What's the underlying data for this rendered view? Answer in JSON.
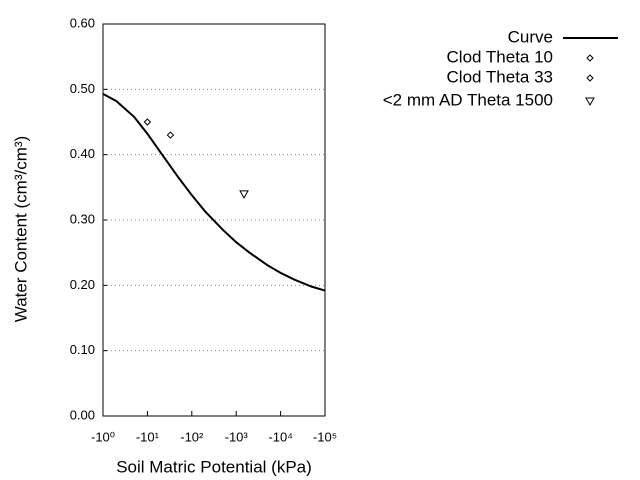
{
  "chart_data": {
    "type": "line",
    "xlabel": "Soil Matric Potential (kPa)",
    "ylabel": "Water Content (cm³/cm³)",
    "xscale": "log",
    "xlim": [
      -1,
      -100000
    ],
    "ylim": [
      0,
      0.6
    ],
    "xticks": [
      {
        "value": -1,
        "label": "-10⁰"
      },
      {
        "value": -10,
        "label": "-10¹"
      },
      {
        "value": -100,
        "label": "-10²"
      },
      {
        "value": -1000,
        "label": "-10³"
      },
      {
        "value": -10000,
        "label": "-10⁴"
      },
      {
        "value": -100000,
        "label": "-10⁵"
      }
    ],
    "yticks": [
      {
        "value": 0,
        "label": "0.00"
      },
      {
        "value": 0.1,
        "label": "0.10"
      },
      {
        "value": 0.2,
        "label": "0.20"
      },
      {
        "value": 0.3,
        "label": "0.30"
      },
      {
        "value": 0.4,
        "label": "0.40"
      },
      {
        "value": 0.5,
        "label": "0.50"
      },
      {
        "value": 0.6,
        "label": "0.60"
      }
    ],
    "grid": true,
    "legend": "upper right",
    "series": [
      {
        "name": "Curve",
        "color": "#000000",
        "marker": "line",
        "x": [
          -1,
          -2,
          -5,
          -10,
          -20,
          -50,
          -100,
          -200,
          -500,
          -1000,
          -2000,
          -5000,
          -10000,
          -20000,
          -50000,
          -100000
        ],
        "values": [
          0.493,
          0.482,
          0.458,
          0.432,
          0.403,
          0.365,
          0.338,
          0.313,
          0.285,
          0.266,
          0.25,
          0.231,
          0.219,
          0.209,
          0.198,
          0.192
        ]
      },
      {
        "name": "Clod Theta 10",
        "color": "#000000",
        "marker": "diamond",
        "x": [
          -10
        ],
        "values": [
          0.45
        ]
      },
      {
        "name": "Clod Theta 33",
        "color": "#000000",
        "marker": "diamond",
        "x": [
          -33
        ],
        "values": [
          0.43
        ]
      },
      {
        "name": "<2 mm AD Theta 1500",
        "color": "#000000",
        "marker": "triangle-down",
        "x": [
          -1500
        ],
        "values": [
          0.34
        ]
      }
    ]
  }
}
